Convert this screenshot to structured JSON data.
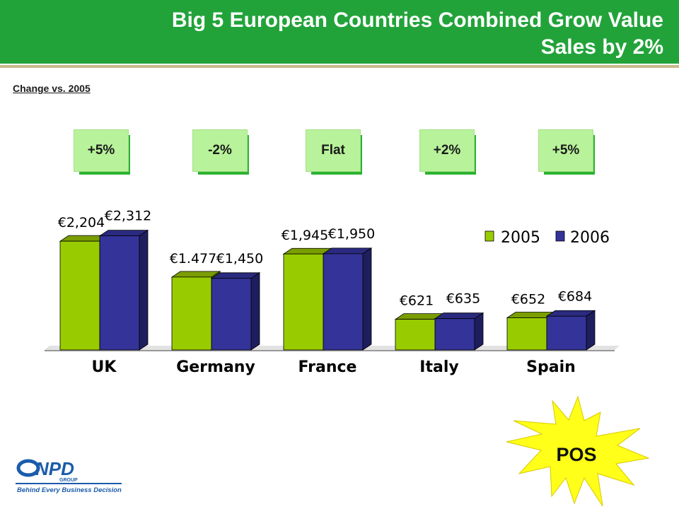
{
  "header": {
    "title_line1": "Big 5 European Countries Combined Grow Value",
    "title_line2": "Sales by 2%"
  },
  "subtitle": "Change vs. 2005",
  "badges": [
    "+5%",
    "-2%",
    "Flat",
    "+2%",
    "+5%"
  ],
  "chart_data": {
    "type": "bar",
    "categories": [
      "UK",
      "Germany",
      "France",
      "Italy",
      "Spain"
    ],
    "series": [
      {
        "name": "2005",
        "values": [
          2204,
          1477,
          1945,
          621,
          652
        ],
        "labels": [
          "€2,204",
          "€1.477",
          "€1,945",
          "€621",
          "€652"
        ]
      },
      {
        "name": "2006",
        "values": [
          2312,
          1450,
          1950,
          635,
          684
        ],
        "labels": [
          "€2,312",
          "€1,450",
          "€1,950",
          "€635",
          "€684"
        ]
      }
    ],
    "legend_position": "top-right",
    "ylim": [
      0,
      2500
    ],
    "colors": {
      "2005": "#99cc00",
      "2006": "#333399"
    },
    "three_d": true,
    "grid": false
  },
  "callout": {
    "text": "POS"
  },
  "logo": {
    "brand": "NPD",
    "group": "GROUP",
    "tagline": "Behind Every Business Decision"
  }
}
